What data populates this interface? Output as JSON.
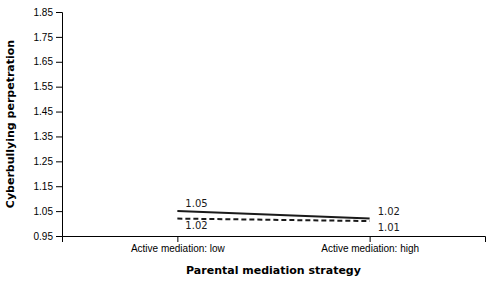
{
  "chart_data": {
    "type": "line",
    "xlabel": "Parental mediation strategy",
    "ylabel": "Cyberbullying perpetration",
    "categories": [
      "Active mediation: low",
      "Active mediation: high"
    ],
    "series": [
      {
        "values": [
          1.05,
          1.02
        ],
        "color": "#1a1a1a",
        "line_style": "solid"
      },
      {
        "values": [
          1.02,
          1.01
        ],
        "color": "#1a1a1a",
        "line_style": "dashed"
      }
    ],
    "ylim": [
      0.95,
      1.85
    ],
    "yticks": [
      0.95,
      1.05,
      1.15,
      1.25,
      1.35,
      1.45,
      1.55,
      1.65,
      1.75,
      1.85
    ],
    "data_labels": true,
    "grid": false
  }
}
